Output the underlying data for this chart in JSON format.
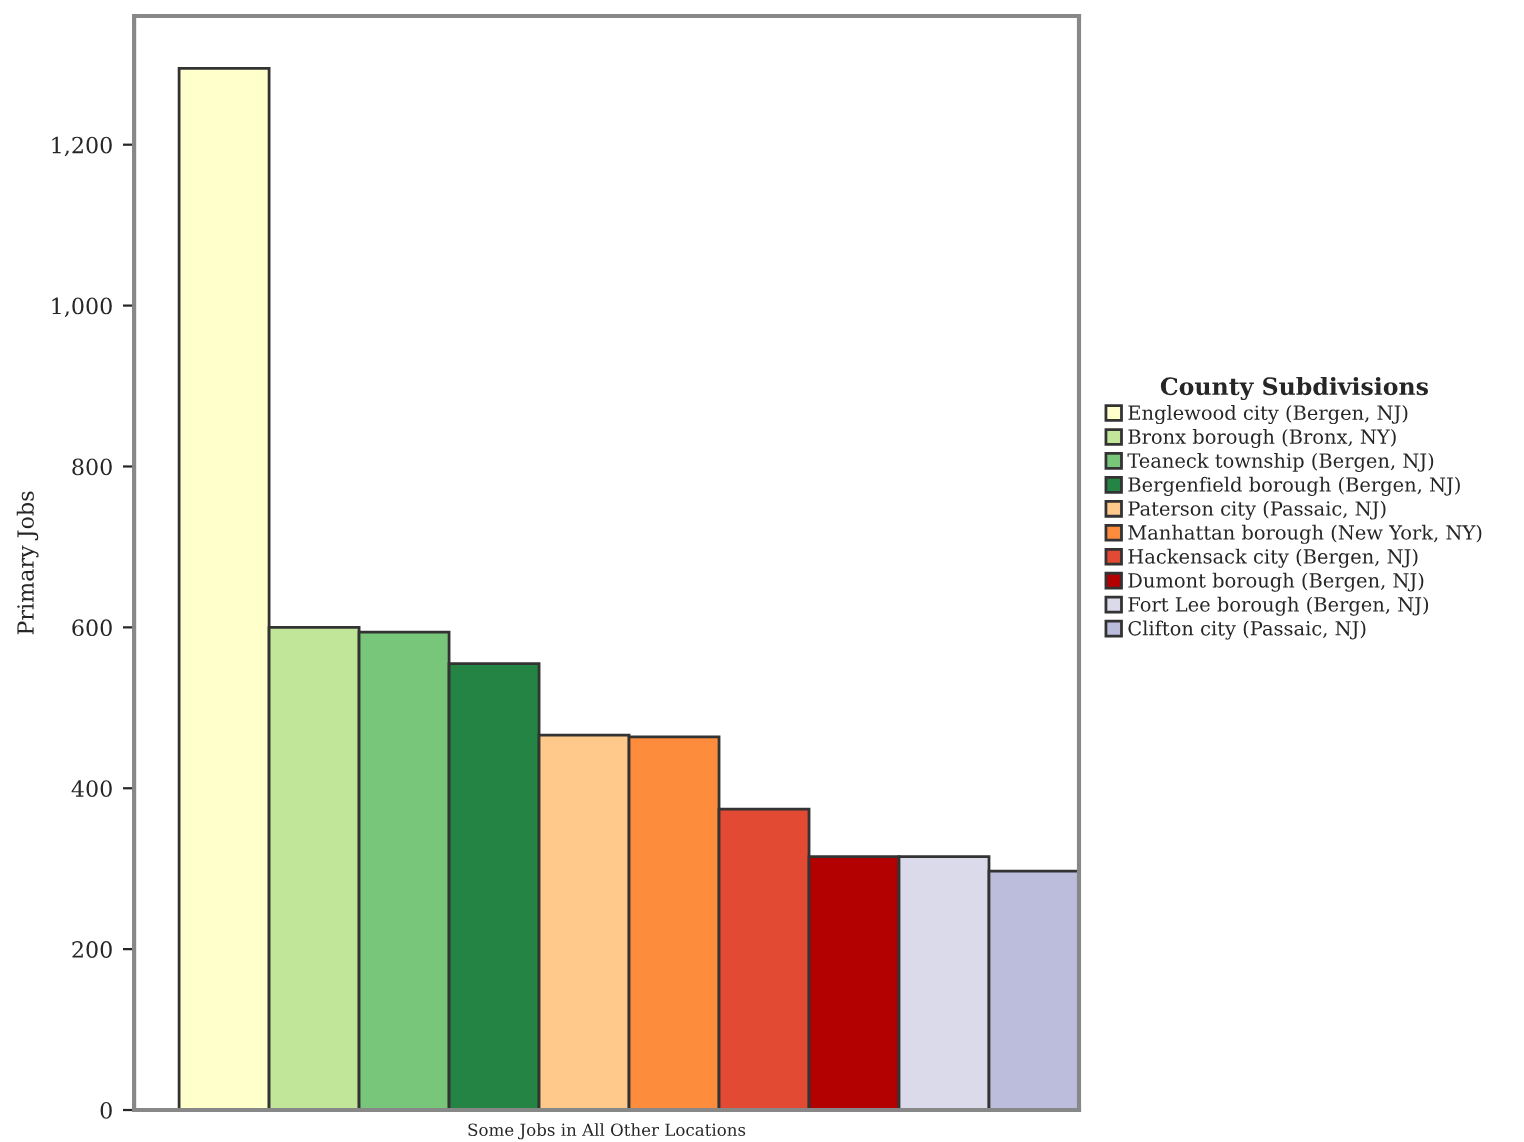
{
  "chart_data": {
    "type": "bar",
    "ylabel": "Primary Jobs",
    "legend_title": "County Subdivisions",
    "legend": "right",
    "categories": [
      null,
      null,
      null,
      null,
      null,
      null,
      null,
      null,
      null,
      null
    ],
    "series": [
      {
        "name": "Englewood city (Bergen, NJ)",
        "color": "#ffffcc",
        "values": [
          1295,
          null,
          null,
          null,
          null,
          null,
          null,
          null,
          null,
          null
        ]
      },
      {
        "name": "Bronx borough (Bronx, NY)",
        "color": "#c2e699",
        "values": [
          null,
          600,
          null,
          null,
          null,
          null,
          null,
          null,
          null,
          null
        ]
      },
      {
        "name": "Teaneck township (Bergen, NJ)",
        "color": "#78c679",
        "values": [
          null,
          null,
          594,
          null,
          null,
          null,
          null,
          null,
          null,
          null
        ]
      },
      {
        "name": "Bergenfield borough (Bergen, NJ)",
        "color": "#238443",
        "values": [
          null,
          null,
          null,
          555,
          null,
          null,
          null,
          null,
          null,
          null
        ]
      },
      {
        "name": "Paterson city (Passaic, NJ)",
        "color": "#fec98a",
        "values": [
          null,
          null,
          null,
          null,
          466,
          null,
          null,
          null,
          null,
          null
        ]
      },
      {
        "name": "Manhattan borough (New York, NY)",
        "color": "#fd8d3c",
        "values": [
          null,
          null,
          null,
          null,
          null,
          464,
          null,
          null,
          null,
          null
        ]
      },
      {
        "name": "Hackensack city (Bergen, NJ)",
        "color": "#e34a33",
        "values": [
          null,
          null,
          null,
          null,
          null,
          null,
          374,
          null,
          null,
          null
        ]
      },
      {
        "name": "Dumont borough (Bergen, NJ)",
        "color": "#b30000",
        "values": [
          null,
          null,
          null,
          null,
          null,
          null,
          null,
          315,
          null,
          null
        ]
      },
      {
        "name": "Fort Lee borough (Bergen, NJ)",
        "color": "#dadaeb",
        "values": [
          null,
          null,
          null,
          null,
          null,
          null,
          null,
          null,
          315,
          null
        ]
      },
      {
        "name": "Clifton city (Passaic, NJ)",
        "color": "#bcbddc",
        "values": [
          null,
          null,
          null,
          null,
          null,
          null,
          null,
          null,
          null,
          297
        ]
      }
    ],
    "ylim": [
      0,
      1360
    ],
    "yticks": [
      0,
      200,
      400,
      600,
      800,
      {
        "value": 1000,
        "label": "1,000"
      },
      {
        "value": 1200,
        "label": "1,200"
      }
    ],
    "tick_labels": "y",
    "annotations": [
      "Some Jobs in All Other Locations"
    ]
  }
}
